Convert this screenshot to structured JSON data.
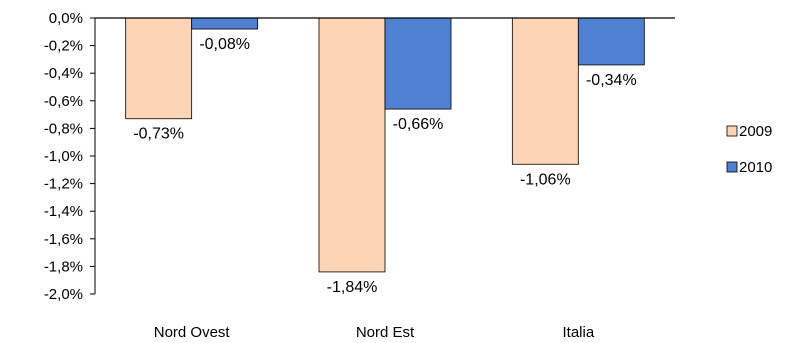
{
  "chart_data": {
    "type": "bar",
    "categories": [
      "Nord Ovest",
      "Nord Est",
      "Italia"
    ],
    "series": [
      {
        "name": "2009",
        "color": "#FBD5B5",
        "values": [
          -0.73,
          -1.84,
          -1.06
        ],
        "labels": [
          "-0,73%",
          "-1,84%",
          "-1,06%"
        ]
      },
      {
        "name": "2010",
        "color": "#4F81D0",
        "values": [
          -0.08,
          -0.66,
          -0.34
        ],
        "labels": [
          "-0,08%",
          "-0,66%",
          "-0,34%"
        ]
      }
    ],
    "yticks": [
      0,
      -0.2,
      -0.4,
      -0.6,
      -0.8,
      -1.0,
      -1.2,
      -1.4,
      -1.6,
      -1.8,
      -2.0
    ],
    "ytick_labels": [
      "0,0%",
      "-0,2%",
      "-0,4%",
      "-0,6%",
      "-0,8%",
      "-1,0%",
      "-1,2%",
      "-1,4%",
      "-1,6%",
      "-1,8%",
      "-2,0%"
    ],
    "ylim": [
      -2.0,
      0
    ],
    "legend": {
      "position": "right",
      "entries": [
        "2009",
        "2010"
      ]
    },
    "grid": false
  }
}
